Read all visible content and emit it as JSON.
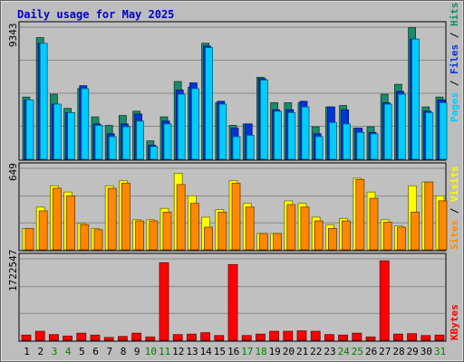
{
  "chart_data": [
    {
      "type": "bar",
      "title": "Daily usage for May 2025",
      "categories": [
        "1",
        "2",
        "3",
        "4",
        "5",
        "6",
        "7",
        "8",
        "9",
        "10",
        "11",
        "12",
        "13",
        "14",
        "15",
        "16",
        "17",
        "18",
        "19",
        "20",
        "21",
        "22",
        "23",
        "24",
        "25",
        "26",
        "27",
        "28",
        "29",
        "30",
        "31"
      ],
      "weekend_days": [
        3,
        4,
        10,
        11,
        17,
        18,
        24,
        25,
        31
      ],
      "ymax_label": "9343",
      "ymax": 9343,
      "legend": {
        "pages": "Pages",
        "files": "Files",
        "hits": "Hits",
        "sep": " / "
      },
      "series": [
        {
          "name": "Hits",
          "values": [
            4400,
            8600,
            4600,
            3600,
            5000,
            3000,
            2400,
            3100,
            3400,
            1300,
            3000,
            5500,
            5100,
            8200,
            4000,
            2400,
            2500,
            5800,
            4000,
            4000,
            4000,
            2300,
            3700,
            3800,
            2200,
            2300,
            4600,
            5300,
            9300,
            3700,
            4400
          ]
        },
        {
          "name": "Files",
          "values": [
            4200,
            8200,
            3900,
            3300,
            5200,
            2500,
            1800,
            2500,
            3200,
            1000,
            2700,
            4900,
            5400,
            8000,
            4100,
            2200,
            2500,
            5700,
            3500,
            3500,
            4100,
            1800,
            3700,
            3500,
            2200,
            1900,
            4000,
            4800,
            8500,
            3400,
            4200
          ]
        },
        {
          "name": "Pages",
          "values": [
            4200,
            8200,
            3900,
            3300,
            5000,
            2400,
            1600,
            2300,
            2700,
            900,
            2500,
            4600,
            5000,
            7900,
            3900,
            1600,
            1700,
            5600,
            3400,
            3300,
            3700,
            1600,
            2600,
            2500,
            1900,
            1800,
            3900,
            4600,
            8500,
            3300,
            4000
          ]
        }
      ]
    },
    {
      "type": "bar",
      "ymax_label": "649",
      "ymax": 649,
      "legend": {
        "sites": "Sites",
        "visits": "Visits",
        "sep": " / "
      },
      "series": [
        {
          "name": "Visits",
          "values": [
            170,
            340,
            510,
            460,
            210,
            170,
            510,
            550,
            240,
            240,
            330,
            610,
            430,
            260,
            320,
            550,
            370,
            130,
            130,
            390,
            370,
            260,
            200,
            250,
            570,
            460,
            240,
            190,
            510,
            540,
            430
          ]
        },
        {
          "name": "Sites",
          "values": [
            170,
            310,
            490,
            430,
            200,
            160,
            490,
            530,
            230,
            230,
            300,
            520,
            370,
            180,
            300,
            530,
            340,
            130,
            130,
            360,
            340,
            230,
            170,
            230,
            560,
            410,
            220,
            180,
            300,
            540,
            390
          ]
        }
      ]
    },
    {
      "type": "bar",
      "ymax_label": "1722547",
      "ymax": 1722547,
      "legend": {
        "kbytes": "KBytes"
      },
      "series": [
        {
          "name": "KBytes",
          "values": [
            110000,
            190000,
            120000,
            90000,
            150000,
            110000,
            60000,
            80000,
            150000,
            70000,
            1640000,
            120000,
            130000,
            160000,
            100000,
            1600000,
            100000,
            130000,
            190000,
            190000,
            200000,
            190000,
            120000,
            110000,
            150000,
            70000,
            1680000,
            130000,
            140000,
            100000,
            110000
          ]
        }
      ]
    }
  ],
  "colors": {
    "title": "#0000cc",
    "background": "#c0c0c0",
    "hits": "#1a8a6a",
    "files": "#0033dd",
    "pages": "#00ccff",
    "visits": "#ffff00",
    "sites": "#ff8800",
    "kbytes": "#ff0000",
    "weekend_label": "#008000",
    "weekday_label": "#000000"
  }
}
